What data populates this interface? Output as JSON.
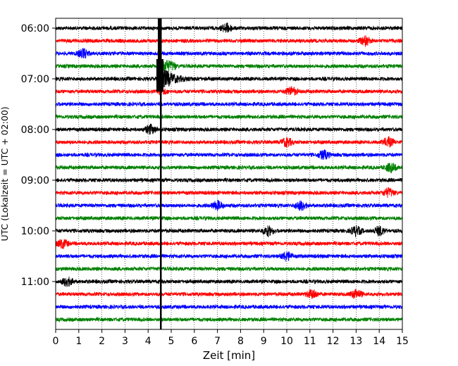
{
  "chart_data": {
    "type": "line",
    "title": "",
    "xlabel": "Zeit  [min]",
    "ylabel": "UTC (Lokalzeit = UTC + 02:00)",
    "xlim": [
      0,
      15
    ],
    "x_ticks": [
      "0",
      "1",
      "2",
      "3",
      "4",
      "5",
      "6",
      "7",
      "8",
      "9",
      "10",
      "11",
      "12",
      "13",
      "14",
      "15"
    ],
    "y_ticks": [
      "06:00",
      "07:00",
      "08:00",
      "09:00",
      "10:00",
      "11:00"
    ],
    "grid": "vertical dotted",
    "trace_colors": [
      "#000000",
      "#ff0000",
      "#0000ff",
      "#008000"
    ],
    "rows": [
      "06:00",
      "06:15",
      "06:30",
      "06:45",
      "07:00",
      "07:15",
      "07:30",
      "07:45",
      "08:00",
      "08:15",
      "08:30",
      "08:45",
      "09:00",
      "09:15",
      "09:30",
      "09:45",
      "10:00",
      "10:15",
      "10:30",
      "10:45",
      "11:00",
      "11:15",
      "11:30",
      "11:45"
    ],
    "event_marker_min": 4.55,
    "event": {
      "onset_min": 4.45,
      "row_start": "06:00",
      "row_peak": "07:00",
      "peak_amplitude": "clipped"
    },
    "bursts": [
      {
        "row": "06:00",
        "min": 7.4
      },
      {
        "row": "06:15",
        "min": 13.4
      },
      {
        "row": "06:30",
        "min": 1.2
      },
      {
        "row": "07:15",
        "min": 10.2
      },
      {
        "row": "08:00",
        "min": 4.1
      },
      {
        "row": "08:15",
        "min": 10.0
      },
      {
        "row": "08:15",
        "min": 14.4
      },
      {
        "row": "08:30",
        "min": 11.6
      },
      {
        "row": "08:45",
        "min": 14.5
      },
      {
        "row": "09:15",
        "min": 14.4
      },
      {
        "row": "09:30",
        "min": 7.0
      },
      {
        "row": "09:30",
        "min": 10.6
      },
      {
        "row": "10:00",
        "min": 9.2
      },
      {
        "row": "10:00",
        "min": 13.0
      },
      {
        "row": "10:00",
        "min": 14.0
      },
      {
        "row": "10:15",
        "min": 0.3
      },
      {
        "row": "10:30",
        "min": 10.0
      },
      {
        "row": "11:00",
        "min": 0.5
      },
      {
        "row": "11:15",
        "min": 11.1
      },
      {
        "row": "11:15",
        "min": 13.0
      }
    ]
  }
}
